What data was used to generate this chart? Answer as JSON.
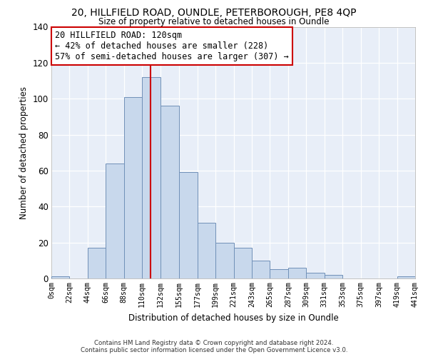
{
  "title_line1": "20, HILLFIELD ROAD, OUNDLE, PETERBOROUGH, PE8 4QP",
  "title_line2": "Size of property relative to detached houses in Oundle",
  "xlabel": "Distribution of detached houses by size in Oundle",
  "ylabel": "Number of detached properties",
  "bar_color": "#c8d8ec",
  "bar_edgecolor": "#7090b8",
  "reference_line_x": 120,
  "reference_line_color": "#cc0000",
  "bin_edges": [
    0,
    22,
    44,
    66,
    88,
    110,
    132,
    155,
    177,
    199,
    221,
    243,
    265,
    287,
    309,
    331,
    353,
    375,
    397,
    419,
    441
  ],
  "bin_labels": [
    "0sqm",
    "22sqm",
    "44sqm",
    "66sqm",
    "88sqm",
    "110sqm",
    "132sqm",
    "155sqm",
    "177sqm",
    "199sqm",
    "221sqm",
    "243sqm",
    "265sqm",
    "287sqm",
    "309sqm",
    "331sqm",
    "353sqm",
    "375sqm",
    "397sqm",
    "419sqm",
    "441sqm"
  ],
  "bar_heights": [
    1,
    0,
    17,
    64,
    101,
    112,
    96,
    59,
    31,
    20,
    17,
    10,
    5,
    6,
    3,
    2,
    0,
    0,
    0,
    1
  ],
  "ylim": [
    0,
    140
  ],
  "yticks": [
    0,
    20,
    40,
    60,
    80,
    100,
    120,
    140
  ],
  "annotation_title": "20 HILLFIELD ROAD: 120sqm",
  "annotation_line1": "← 42% of detached houses are smaller (228)",
  "annotation_line2": "57% of semi-detached houses are larger (307) →",
  "annotation_box_color": "#ffffff",
  "annotation_box_edgecolor": "#cc0000",
  "footer_line1": "Contains HM Land Registry data © Crown copyright and database right 2024.",
  "footer_line2": "Contains public sector information licensed under the Open Government Licence v3.0.",
  "background_color": "#ffffff",
  "plot_bg_color": "#e8eef8",
  "grid_color": "#ffffff"
}
